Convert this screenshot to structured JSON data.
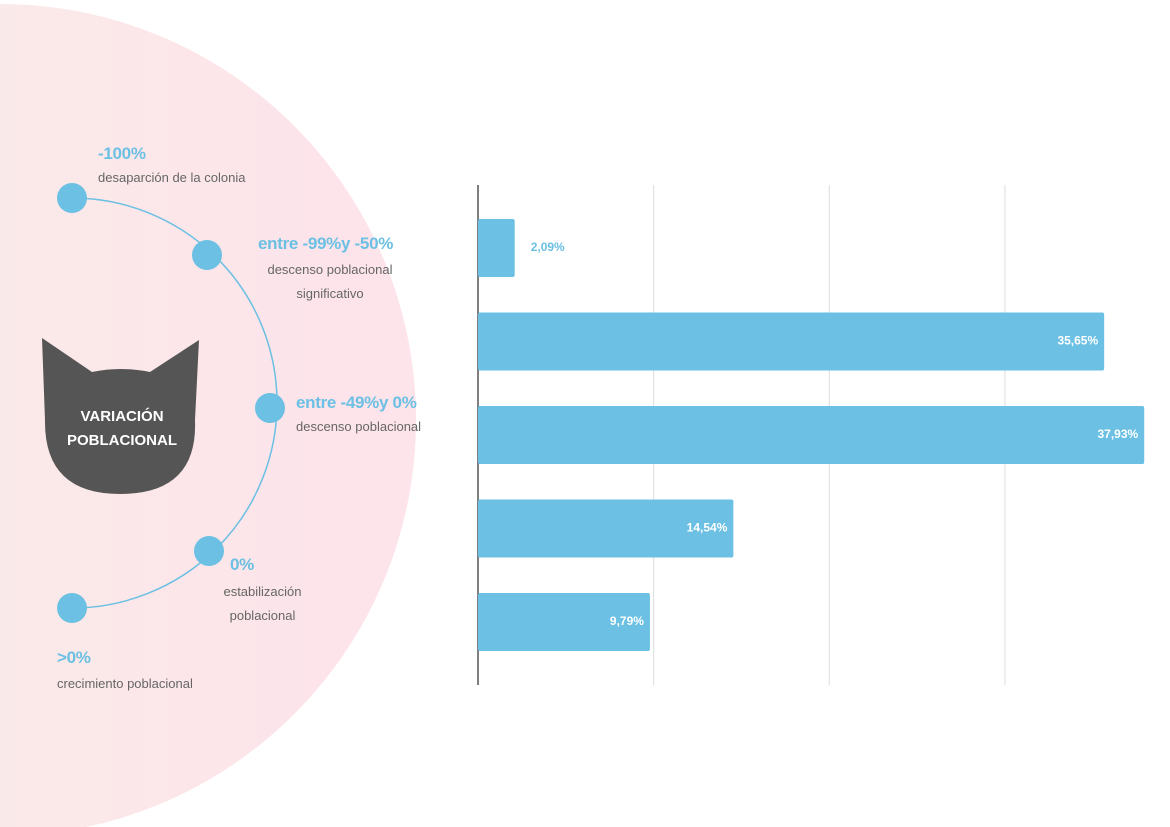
{
  "chart_data": {
    "type": "bar",
    "orientation": "horizontal",
    "title": "VARIACIÓN POBLACIONAL",
    "categories": [
      "-100%",
      "entre -99%y -50%",
      "entre -49%y 0%",
      "0%",
      ">0%"
    ],
    "descriptions": [
      "desaparción de la colonia",
      "descenso poblacional significativo",
      "descenso poblacional",
      "estabilización poblacional",
      "crecimiento poblacional"
    ],
    "values": [
      2.09,
      35.65,
      37.93,
      14.54,
      9.79
    ],
    "value_labels": [
      "2,09%",
      "35,65%",
      "37,93%",
      "14,54%",
      "9,79%"
    ],
    "color": "#6bc0e3",
    "xlim": [
      0,
      39
    ],
    "xticks": [
      0,
      10,
      20,
      30
    ],
    "grid": true
  }
}
